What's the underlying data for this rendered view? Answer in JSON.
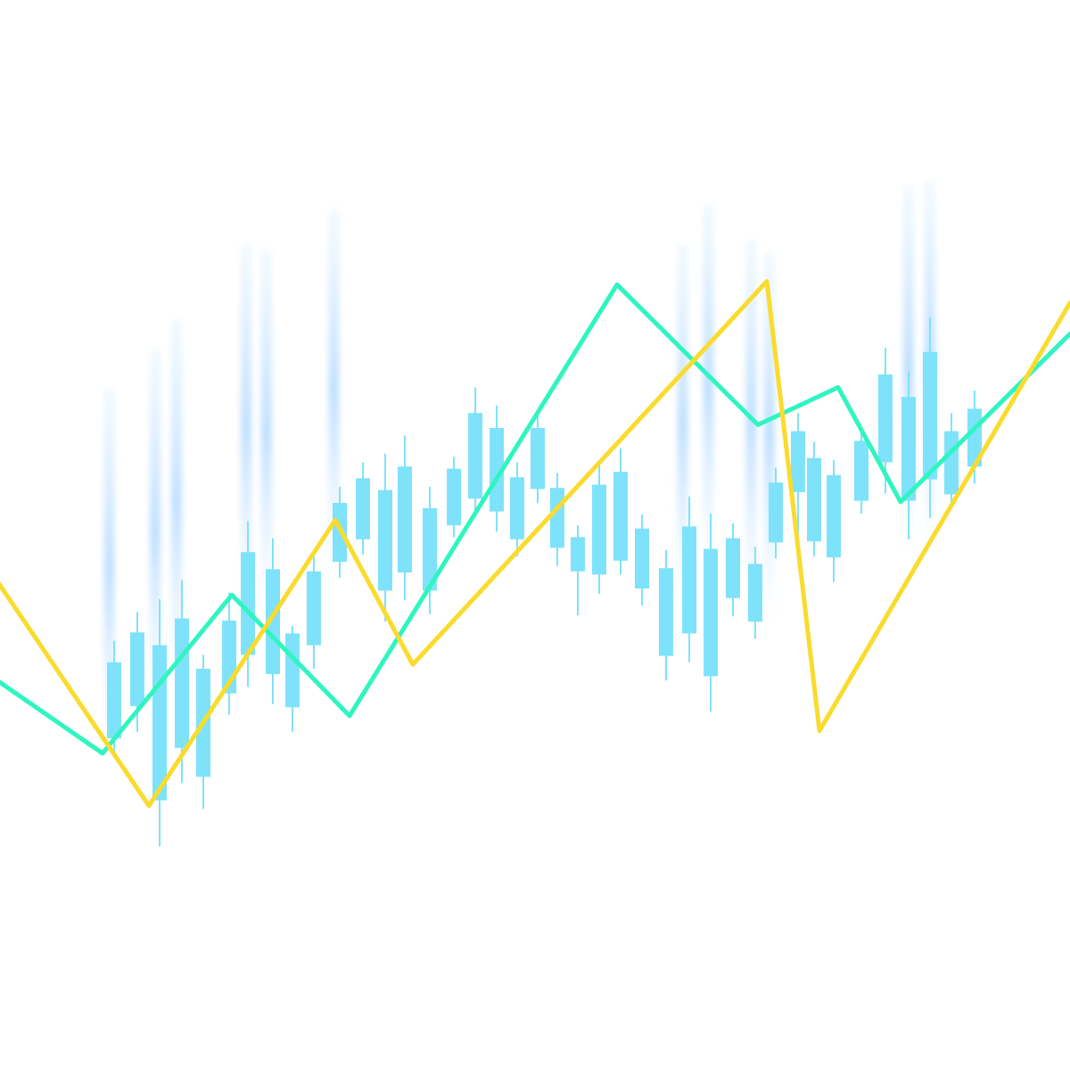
{
  "chart_data": {
    "type": "candlestick-with-lines",
    "title": "",
    "xlabel": "",
    "ylabel": "",
    "ylim": [
      0,
      100
    ],
    "xlim": [
      0,
      100
    ],
    "grid": false,
    "legend": "none",
    "colors": {
      "background": "#ffffff",
      "candle": "#7ee2fb",
      "candle_wick": "#7ee2fb",
      "glow": "#cfe9ff",
      "line_green": "#2ff5c0",
      "line_yellow": "#fadb2e"
    },
    "candles": [
      {
        "x": 10.67,
        "open": 31.0,
        "close": 38.1,
        "high": 40.1,
        "low": 29.6
      },
      {
        "x": 12.83,
        "open": 34.0,
        "close": 40.9,
        "high": 42.8,
        "low": 31.6
      },
      {
        "x": 14.92,
        "open": 25.2,
        "close": 39.7,
        "high": 44.0,
        "low": 20.9
      },
      {
        "x": 17.0,
        "open": 30.1,
        "close": 42.2,
        "high": 45.8,
        "low": 26.8
      },
      {
        "x": 19.0,
        "open": 27.4,
        "close": 37.5,
        "high": 38.8,
        "low": 24.4
      },
      {
        "x": 21.42,
        "open": 35.2,
        "close": 42.0,
        "high": 44.6,
        "low": 33.2
      },
      {
        "x": 23.17,
        "open": 38.8,
        "close": 48.4,
        "high": 51.3,
        "low": 35.8
      },
      {
        "x": 25.5,
        "open": 37.0,
        "close": 46.8,
        "high": 49.7,
        "low": 34.2
      },
      {
        "x": 27.33,
        "open": 33.9,
        "close": 40.8,
        "high": 41.5,
        "low": 31.6
      },
      {
        "x": 29.33,
        "open": 39.7,
        "close": 46.6,
        "high": 48.3,
        "low": 37.5
      },
      {
        "x": 31.75,
        "open": 47.5,
        "close": 53.0,
        "high": 54.5,
        "low": 46.0
      },
      {
        "x": 33.92,
        "open": 49.6,
        "close": 55.3,
        "high": 56.8,
        "low": 48.2
      },
      {
        "x": 36.0,
        "open": 44.8,
        "close": 54.2,
        "high": 57.6,
        "low": 41.9
      },
      {
        "x": 37.83,
        "open": 46.5,
        "close": 56.4,
        "high": 59.3,
        "low": 43.9
      },
      {
        "x": 40.17,
        "open": 44.8,
        "close": 52.5,
        "high": 54.5,
        "low": 42.6
      },
      {
        "x": 42.42,
        "open": 50.9,
        "close": 56.2,
        "high": 57.3,
        "low": 49.8
      },
      {
        "x": 44.42,
        "open": 53.4,
        "close": 61.4,
        "high": 63.8,
        "low": 51.7
      },
      {
        "x": 46.42,
        "open": 52.2,
        "close": 60.0,
        "high": 62.1,
        "low": 50.3
      },
      {
        "x": 48.33,
        "open": 49.6,
        "close": 55.4,
        "high": 56.8,
        "low": 48.0
      },
      {
        "x": 50.25,
        "open": 54.3,
        "close": 60.0,
        "high": 61.4,
        "low": 53.0
      },
      {
        "x": 52.08,
        "open": 48.8,
        "close": 54.4,
        "high": 55.8,
        "low": 47.1
      },
      {
        "x": 54.0,
        "open": 46.6,
        "close": 49.8,
        "high": 50.9,
        "low": 42.5
      },
      {
        "x": 56.0,
        "open": 46.3,
        "close": 54.7,
        "high": 56.5,
        "low": 44.5
      },
      {
        "x": 58.0,
        "open": 47.6,
        "close": 55.9,
        "high": 58.1,
        "low": 46.3
      },
      {
        "x": 60.0,
        "open": 45.0,
        "close": 50.6,
        "high": 51.9,
        "low": 43.4
      },
      {
        "x": 62.25,
        "open": 38.7,
        "close": 46.9,
        "high": 48.6,
        "low": 36.4
      },
      {
        "x": 64.42,
        "open": 40.8,
        "close": 50.8,
        "high": 53.6,
        "low": 38.1
      },
      {
        "x": 66.42,
        "open": 36.8,
        "close": 48.7,
        "high": 52.0,
        "low": 33.5
      },
      {
        "x": 68.5,
        "open": 44.1,
        "close": 49.7,
        "high": 51.1,
        "low": 42.4
      },
      {
        "x": 70.58,
        "open": 41.9,
        "close": 47.3,
        "high": 48.9,
        "low": 40.3
      },
      {
        "x": 72.5,
        "open": 49.3,
        "close": 54.9,
        "high": 56.3,
        "low": 47.8
      },
      {
        "x": 74.58,
        "open": 54.0,
        "close": 59.7,
        "high": 61.4,
        "low": 47.8
      },
      {
        "x": 76.08,
        "open": 49.4,
        "close": 57.2,
        "high": 58.7,
        "low": 48.0
      },
      {
        "x": 77.92,
        "open": 47.9,
        "close": 55.6,
        "high": 57.0,
        "low": 45.6
      },
      {
        "x": 80.5,
        "open": 53.2,
        "close": 58.8,
        "high": 59.9,
        "low": 52.0
      },
      {
        "x": 82.75,
        "open": 56.8,
        "close": 65.0,
        "high": 67.5,
        "low": 53.9
      },
      {
        "x": 84.92,
        "open": 53.2,
        "close": 62.9,
        "high": 65.3,
        "low": 49.6
      },
      {
        "x": 86.92,
        "open": 55.2,
        "close": 67.1,
        "high": 70.4,
        "low": 51.6
      },
      {
        "x": 88.92,
        "open": 53.8,
        "close": 59.7,
        "high": 61.4,
        "low": 52.7
      },
      {
        "x": 91.08,
        "open": 56.4,
        "close": 61.8,
        "high": 63.5,
        "low": 54.8
      }
    ],
    "glows": [
      {
        "x": 10.2,
        "top": 63.8
      },
      {
        "x": 14.5,
        "top": 67.4
      },
      {
        "x": 16.5,
        "top": 70.2
      },
      {
        "x": 23.0,
        "top": 77.2
      },
      {
        "x": 24.9,
        "top": 76.8
      },
      {
        "x": 31.2,
        "top": 80.5
      },
      {
        "x": 63.8,
        "top": 77.2
      },
      {
        "x": 66.2,
        "top": 81.0
      },
      {
        "x": 70.2,
        "top": 77.6
      },
      {
        "x": 71.9,
        "top": 76.5
      },
      {
        "x": 84.9,
        "top": 82.6
      },
      {
        "x": 86.9,
        "top": 83.1
      }
    ],
    "series": [
      {
        "x": [
          -1.7,
          9.58,
          21.67,
          32.67,
          57.67,
          70.83,
          78.33,
          84.17,
          100.0
        ],
        "y": [
          37.4,
          29.6,
          44.4,
          33.1,
          73.4,
          60.3,
          63.8,
          53.1,
          68.8
        ]
      },
      {
        "x": [
          -2.5,
          13.92,
          31.33,
          38.58,
          71.67,
          76.58,
          100.0
        ],
        "y": [
          49.0,
          24.7,
          51.4,
          37.9,
          73.7,
          31.7,
          71.7
        ]
      }
    ]
  }
}
